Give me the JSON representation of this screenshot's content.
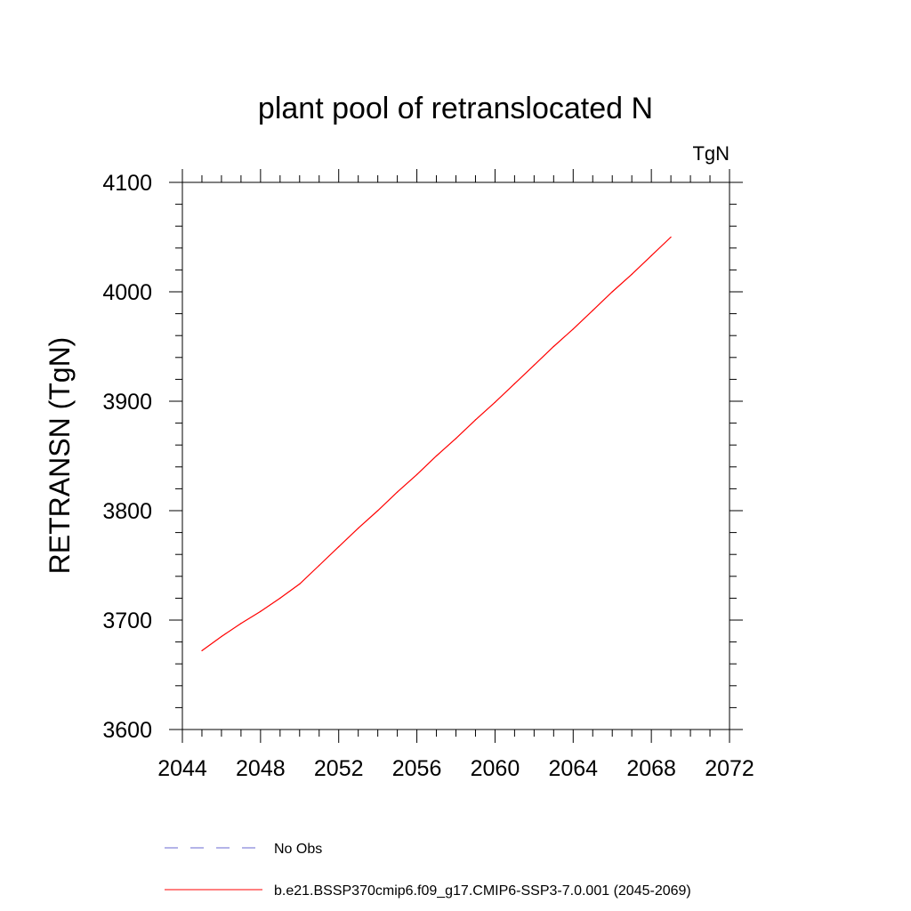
{
  "chart_data": {
    "type": "line",
    "title": "plant pool of retranslocated N",
    "units_label": "TgN",
    "xlabel": "",
    "ylabel": "RETRANSN  (TgN)",
    "xlim": [
      2044,
      2072
    ],
    "ylim": [
      3600,
      4100
    ],
    "xticks": [
      2044,
      2048,
      2052,
      2056,
      2060,
      2064,
      2068,
      2072
    ],
    "xtick_labels": [
      "2044",
      "2048",
      "2052",
      "2056",
      "2060",
      "2064",
      "2068",
      "2072"
    ],
    "yticks": [
      3600,
      3700,
      3800,
      3900,
      4000,
      4100
    ],
    "ytick_labels": [
      "3600",
      "3700",
      "3800",
      "3900",
      "4000",
      "4100"
    ],
    "grid": false,
    "legend_position": "bottom",
    "series": [
      {
        "name": "No Obs",
        "color": "#6a6ad0",
        "dash": "dashed",
        "x": [],
        "y": []
      },
      {
        "name": "b.e21.BSSP370cmip6.f09_g17.CMIP6-SSP3-7.0.001 (2045-2069)",
        "color": "#ff0000",
        "dash": "solid",
        "x": [
          2045,
          2046,
          2047,
          2048,
          2049,
          2050,
          2051,
          2052,
          2053,
          2054,
          2055,
          2056,
          2057,
          2058,
          2059,
          2060,
          2061,
          2062,
          2063,
          2064,
          2065,
          2066,
          2067,
          2068,
          2069
        ],
        "y": [
          3672,
          3685,
          3697,
          3708,
          3720,
          3733,
          3750,
          3767,
          3784,
          3800,
          3817,
          3833,
          3850,
          3866,
          3883,
          3899,
          3916,
          3933,
          3950,
          3966,
          3983,
          4000,
          4016,
          4033,
          4050
        ]
      }
    ]
  }
}
